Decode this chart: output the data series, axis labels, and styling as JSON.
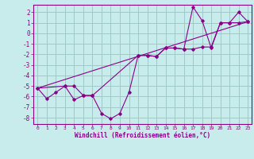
{
  "title": "",
  "xlabel": "Windchill (Refroidissement éolien,°C)",
  "ylabel": "",
  "bg_color": "#c8ecec",
  "grid_color": "#a0c8c8",
  "line_color": "#880088",
  "marker_color": "#880088",
  "xlim": [
    -0.5,
    23.4
  ],
  "ylim": [
    -8.6,
    2.7
  ],
  "yticks": [
    2,
    1,
    0,
    -1,
    -2,
    -3,
    -4,
    -5,
    -6,
    -7,
    -8
  ],
  "xticks": [
    0,
    1,
    2,
    3,
    4,
    5,
    6,
    7,
    8,
    9,
    10,
    11,
    12,
    13,
    14,
    15,
    16,
    17,
    18,
    19,
    20,
    21,
    22,
    23
  ],
  "series1_x": [
    0,
    1,
    2,
    3,
    4,
    5,
    6,
    7,
    8,
    9,
    10,
    11,
    12,
    13,
    14,
    15,
    16,
    17,
    18,
    19,
    20,
    21,
    22,
    23
  ],
  "series1_y": [
    -5.2,
    -6.2,
    -5.6,
    -5.0,
    -6.3,
    -5.9,
    -5.9,
    -7.6,
    -8.1,
    -7.6,
    -5.6,
    -2.1,
    -2.1,
    -2.2,
    -1.4,
    -1.4,
    -1.5,
    2.5,
    1.2,
    -1.4,
    1.0,
    1.0,
    2.0,
    1.1
  ],
  "series2_x": [
    0,
    3,
    4,
    5,
    6,
    11,
    12,
    13,
    14,
    15,
    16,
    17,
    18,
    19,
    20,
    21,
    22,
    23
  ],
  "series2_y": [
    -5.2,
    -5.0,
    -5.0,
    -5.9,
    -5.9,
    -2.1,
    -2.1,
    -2.2,
    -1.4,
    -1.4,
    -1.5,
    -1.5,
    -1.3,
    -1.3,
    1.0,
    1.0,
    1.0,
    1.1
  ],
  "series3_x": [
    0,
    23
  ],
  "series3_y": [
    -5.2,
    1.1
  ],
  "tick_color": "#880088",
  "label_color": "#880088"
}
